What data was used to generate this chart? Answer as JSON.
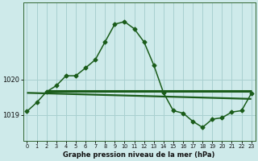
{
  "title": "Graphe pression niveau de la mer (hPa)",
  "bg_color": "#ceeaea",
  "grid_color": "#a8d0d0",
  "line_color": "#1a5c1a",
  "hours": [
    0,
    1,
    2,
    3,
    4,
    5,
    6,
    7,
    8,
    9,
    10,
    11,
    12,
    13,
    14,
    15,
    16,
    17,
    18,
    19,
    20,
    21,
    22,
    23
  ],
  "pressure": [
    1019.1,
    1019.35,
    1019.65,
    1019.82,
    1020.1,
    1020.1,
    1020.32,
    1020.55,
    1021.05,
    1021.55,
    1021.62,
    1021.42,
    1021.05,
    1020.4,
    1019.62,
    1019.12,
    1019.05,
    1018.82,
    1018.65,
    1018.88,
    1018.92,
    1019.08,
    1019.12,
    1019.6
  ],
  "flat_line_x": [
    0,
    23
  ],
  "flat_line_y": [
    1019.62,
    1019.45
  ],
  "ref_line_x": [
    2,
    23
  ],
  "ref_line_y": [
    1019.68,
    1019.68
  ],
  "xlim": [
    -0.4,
    23.4
  ],
  "ylim": [
    1018.28,
    1022.15
  ],
  "yticks": [
    1019,
    1020
  ],
  "xticks": [
    0,
    1,
    2,
    3,
    4,
    5,
    6,
    7,
    8,
    9,
    10,
    11,
    12,
    13,
    14,
    15,
    16,
    17,
    18,
    19,
    20,
    21,
    22,
    23
  ]
}
